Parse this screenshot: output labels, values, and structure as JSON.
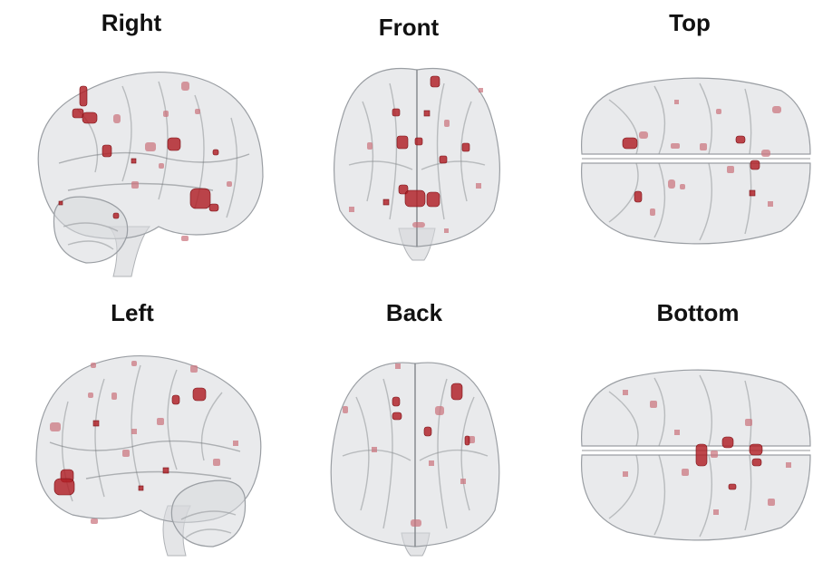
{
  "views": [
    {
      "id": "right",
      "label": "Right"
    },
    {
      "id": "front",
      "label": "Front"
    },
    {
      "id": "top",
      "label": "Top"
    },
    {
      "id": "left",
      "label": "Left"
    },
    {
      "id": "back",
      "label": "Back"
    },
    {
      "id": "bottom",
      "label": "Bottom"
    }
  ],
  "colors": {
    "background": "#ffffff",
    "brain_shell": "#d7d9dc",
    "activation": "#b01e24"
  }
}
